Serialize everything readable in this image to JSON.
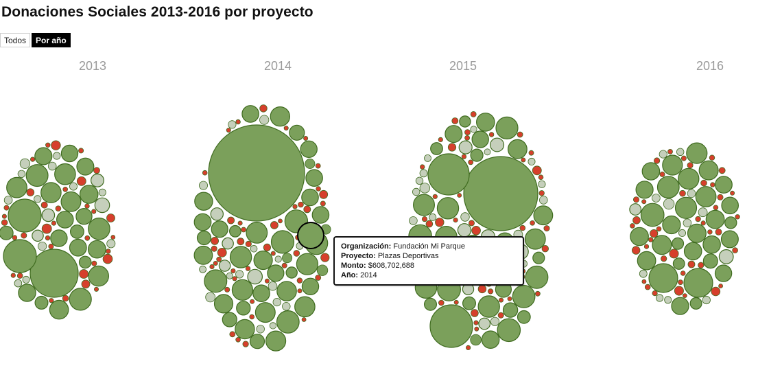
{
  "title": "Donaciones Sociales 2013-2016 por proyecto",
  "toggle": {
    "all_label": "Todos",
    "by_year_label": "Por año",
    "active": "by_year"
  },
  "colors": {
    "large": "#7ba05b",
    "medium": "#c5cfbb",
    "small": "#d63f2c",
    "stroke": "#3f6b1f",
    "label": "#9a9a9a"
  },
  "tooltip": {
    "org_label": "Organización:",
    "org_value": "Fundación Mi Parque",
    "project_label": "Proyecto:",
    "project_value": "Plazas Deportivas",
    "amount_label": "Monto:",
    "amount_value": "$608,702,688",
    "year_label": "Año:",
    "year_value": "2014"
  },
  "chart_data": {
    "type": "bubble",
    "years": [
      "2013",
      "2014",
      "2015",
      "2016"
    ],
    "highlighted": {
      "organization": "Fundación Mi Parque",
      "project": "Plazas Deportivas",
      "amount": 608702688,
      "year": "2014"
    }
  }
}
